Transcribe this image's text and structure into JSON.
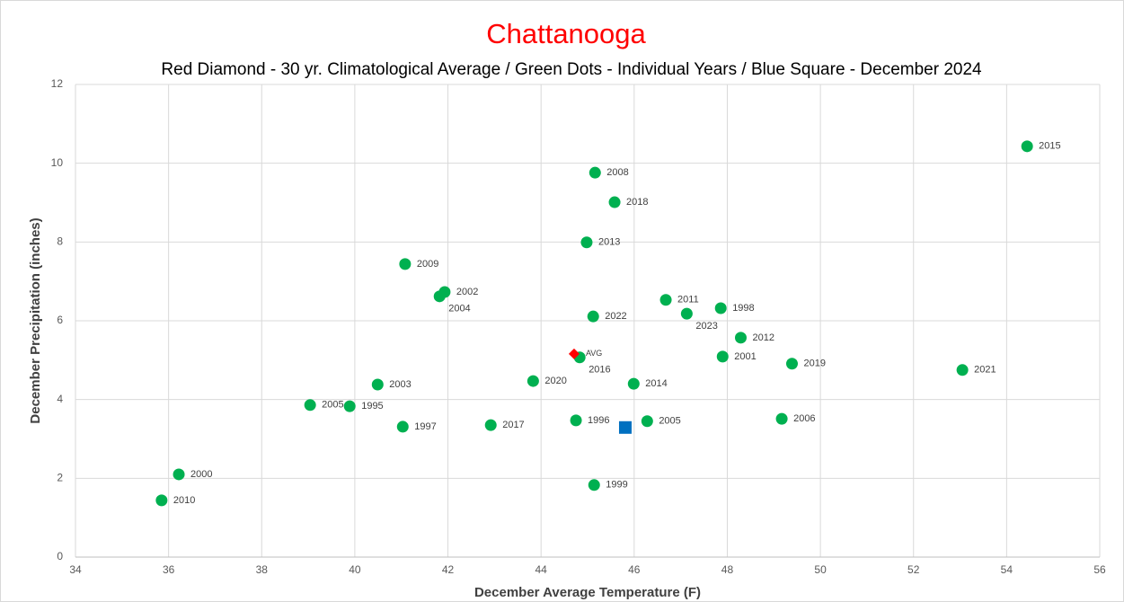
{
  "chart_data": {
    "type": "scatter",
    "title": "Chattanooga",
    "subtitle": "Red Diamond - 30 yr. Climatological Average / Green Dots - Individual Years / Blue Square - December 2024",
    "x_label": "December Average Temperature (F)",
    "y_label": "December Precipitation (inches)",
    "xlim": [
      34,
      56
    ],
    "xticks": [
      34,
      36,
      38,
      40,
      42,
      44,
      46,
      48,
      50,
      52,
      54,
      56
    ],
    "ylim": [
      0,
      12
    ],
    "yticks": [
      0,
      2,
      4,
      6,
      8,
      10,
      12
    ],
    "grid": true,
    "series": [
      {
        "color": "#00b050",
        "marker": "circle",
        "labels": [
          "2015",
          "2008",
          "2018",
          "2013",
          "2009",
          "2002",
          "2004",
          "2011",
          "1998",
          "2023",
          "2022",
          "2012",
          "2016",
          "2001",
          "2019",
          "2021",
          "2003",
          "2020",
          "2014",
          "2005",
          "1995",
          "2006",
          "1996",
          "2005",
          "1997",
          "2017",
          "2000",
          "2010",
          "1999"
        ],
        "x": [
          54.44,
          45.16,
          45.58,
          44.98,
          41.08,
          41.93,
          41.82,
          46.68,
          47.86,
          47.13,
          45.12,
          48.29,
          44.83,
          47.9,
          49.39,
          53.05,
          40.49,
          43.83,
          45.99,
          39.04,
          39.89,
          49.17,
          44.75,
          46.28,
          41.03,
          42.92,
          36.22,
          35.85,
          45.14
        ],
        "values": [
          10.43,
          9.76,
          9.01,
          7.99,
          7.44,
          6.73,
          6.62,
          6.53,
          6.32,
          6.18,
          6.11,
          5.57,
          5.07,
          5.09,
          4.91,
          4.75,
          4.38,
          4.47,
          4.4,
          3.86,
          3.83,
          3.51,
          3.47,
          3.45,
          3.31,
          3.35,
          2.1,
          1.44,
          1.83
        ]
      },
      {
        "color": "#ff0000",
        "marker": "diamond",
        "labels": [
          "AVG"
        ],
        "x": [
          44.71
        ],
        "values": [
          5.16
        ]
      },
      {
        "color": "#0070c0",
        "marker": "square",
        "x": [
          45.81
        ],
        "values": [
          3.29
        ]
      }
    ]
  }
}
